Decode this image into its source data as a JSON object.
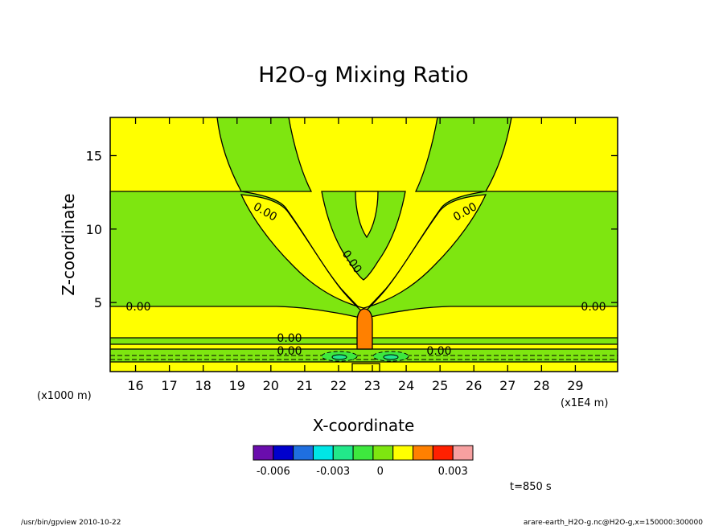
{
  "chart_data": {
    "type": "contour",
    "title": "H2O-g Mixing Ratio",
    "xlabel": "X-coordinate",
    "ylabel": "Z-coordinate",
    "x_unit_note": "(x1E4 m)",
    "y_unit_note": "(x1000 m)",
    "xlim": [
      15.25,
      30.25
    ],
    "ylim": [
      0.3,
      17.6
    ],
    "x_ticks": [
      16,
      17,
      18,
      19,
      20,
      21,
      22,
      23,
      24,
      25,
      26,
      27,
      28,
      29
    ],
    "y_ticks": [
      5,
      10,
      15
    ],
    "contour_labels": [
      "0.00",
      "0.00",
      "0.00",
      "0.00",
      "0.00",
      "0.00",
      "0.00",
      "0.00",
      "0.00"
    ],
    "colorbar": {
      "colors": [
        "#6a0dad",
        "#0000cd",
        "#1f6fe0",
        "#00e6e6",
        "#22e88a",
        "#3ee83e",
        "#7ee610",
        "#ffff00",
        "#ff8000",
        "#ff2000",
        "#f7a0a0"
      ],
      "tick_labels": [
        "-0.006",
        "-0.003",
        "0",
        "0.003"
      ]
    },
    "time_label": "t=850 s",
    "footer_left": "/usr/bin/gpview   2010-10-22",
    "footer_right": "arare-earth_H2O-g.nc@H2O-g,x=150000:300000"
  }
}
